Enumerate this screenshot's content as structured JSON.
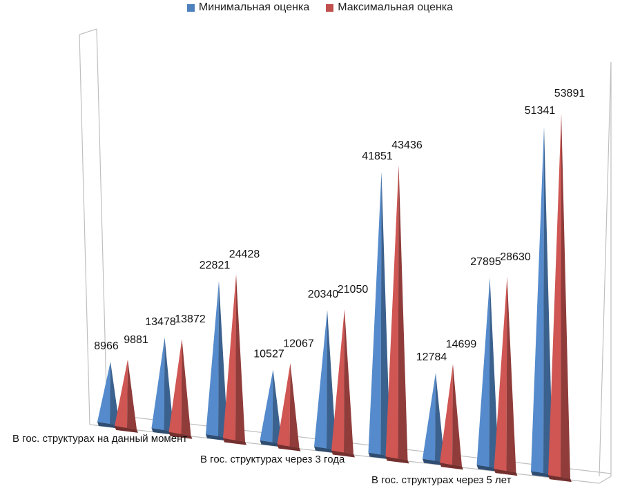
{
  "chart_data": {
    "type": "bar",
    "title": "",
    "xlabel": "",
    "ylabel": "",
    "legend_position": "top",
    "x": [
      1,
      2,
      3,
      4,
      5,
      6,
      7,
      8,
      9
    ],
    "category_labels": [
      {
        "label": "В гос. структурах на данный момент",
        "group": [
          1,
          3
        ]
      },
      {
        "label": "В гос. структурах через 3 года",
        "group": [
          4,
          6
        ]
      },
      {
        "label": "В гос. структурах через 5 лет",
        "group": [
          7,
          9
        ]
      }
    ],
    "series": [
      {
        "name": "Минимальная оценка",
        "color": "#4F81BD",
        "values": [
          8966,
          13478,
          22821,
          10527,
          20340,
          41851,
          12784,
          27895,
          51341
        ]
      },
      {
        "name": "Максимальная оценка",
        "color": "#C0504D",
        "values": [
          9881,
          13872,
          24428,
          12067,
          21050,
          43436,
          14699,
          28630,
          53891
        ]
      }
    ],
    "ylim": [
      0,
      60000
    ],
    "grid": false,
    "style": "3d-cone"
  }
}
